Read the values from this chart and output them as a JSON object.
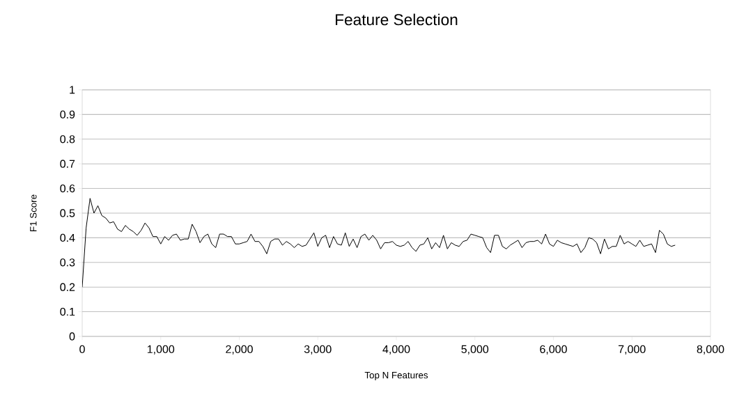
{
  "chart_data": {
    "type": "line",
    "title": "Feature Selection",
    "xlabel": "Top N Features",
    "ylabel": "F1 Score",
    "x": [
      0,
      50,
      100,
      150,
      200,
      250,
      300,
      350,
      400,
      450,
      500,
      550,
      600,
      650,
      700,
      750,
      800,
      850,
      900,
      950,
      1000,
      1050,
      1100,
      1150,
      1200,
      1250,
      1300,
      1350,
      1400,
      1450,
      1500,
      1550,
      1600,
      1650,
      1700,
      1750,
      1800,
      1850,
      1900,
      1950,
      2000,
      2050,
      2100,
      2150,
      2200,
      2250,
      2300,
      2350,
      2400,
      2450,
      2500,
      2550,
      2600,
      2650,
      2700,
      2750,
      2800,
      2850,
      2900,
      2950,
      3000,
      3050,
      3100,
      3150,
      3200,
      3250,
      3300,
      3350,
      3400,
      3450,
      3500,
      3550,
      3600,
      3650,
      3700,
      3750,
      3800,
      3850,
      3900,
      3950,
      4000,
      4050,
      4100,
      4150,
      4200,
      4250,
      4300,
      4350,
      4400,
      4450,
      4500,
      4550,
      4600,
      4650,
      4700,
      4750,
      4800,
      4850,
      4900,
      4950,
      5000,
      5050,
      5100,
      5150,
      5200,
      5250,
      5300,
      5350,
      5400,
      5450,
      5500,
      5550,
      5600,
      5650,
      5700,
      5750,
      5800,
      5850,
      5900,
      5950,
      6000,
      6050,
      6100,
      6150,
      6200,
      6250,
      6300,
      6350,
      6400,
      6450,
      6500,
      6550,
      6600,
      6650,
      6700,
      6750,
      6800,
      6850,
      6900,
      6950,
      7000,
      7050,
      7100,
      7150,
      7200,
      7250,
      7300,
      7350,
      7400,
      7450,
      7500,
      7550
    ],
    "series": [
      {
        "color": "#000000",
        "values": [
          0.2,
          0.44,
          0.56,
          0.5,
          0.53,
          0.49,
          0.48,
          0.46,
          0.465,
          0.435,
          0.425,
          0.45,
          0.435,
          0.425,
          0.41,
          0.43,
          0.46,
          0.44,
          0.405,
          0.405,
          0.375,
          0.405,
          0.39,
          0.41,
          0.415,
          0.39,
          0.395,
          0.395,
          0.455,
          0.425,
          0.38,
          0.405,
          0.415,
          0.375,
          0.36,
          0.415,
          0.415,
          0.405,
          0.405,
          0.375,
          0.375,
          0.38,
          0.385,
          0.415,
          0.385,
          0.385,
          0.365,
          0.335,
          0.385,
          0.395,
          0.395,
          0.37,
          0.385,
          0.375,
          0.36,
          0.375,
          0.365,
          0.37,
          0.395,
          0.42,
          0.365,
          0.4,
          0.41,
          0.36,
          0.405,
          0.375,
          0.37,
          0.42,
          0.365,
          0.395,
          0.36,
          0.405,
          0.415,
          0.39,
          0.41,
          0.39,
          0.355,
          0.38,
          0.38,
          0.385,
          0.37,
          0.365,
          0.37,
          0.385,
          0.36,
          0.345,
          0.37,
          0.375,
          0.4,
          0.355,
          0.38,
          0.36,
          0.41,
          0.355,
          0.38,
          0.37,
          0.365,
          0.385,
          0.39,
          0.415,
          0.41,
          0.405,
          0.4,
          0.36,
          0.34,
          0.41,
          0.41,
          0.365,
          0.355,
          0.37,
          0.38,
          0.39,
          0.36,
          0.38,
          0.385,
          0.385,
          0.39,
          0.375,
          0.415,
          0.375,
          0.365,
          0.39,
          0.38,
          0.375,
          0.37,
          0.365,
          0.375,
          0.34,
          0.36,
          0.4,
          0.395,
          0.38,
          0.335,
          0.395,
          0.355,
          0.365,
          0.365,
          0.41,
          0.375,
          0.385,
          0.375,
          0.365,
          0.39,
          0.365,
          0.37,
          0.375,
          0.34,
          0.43,
          0.415,
          0.375,
          0.365,
          0.37
        ]
      }
    ],
    "xlim": [
      0,
      8000
    ],
    "ylim": [
      0,
      1
    ],
    "xticks": [
      0,
      {
        "value": 1000,
        "label": "1,000"
      },
      {
        "value": 2000,
        "label": "2,000"
      },
      {
        "value": 3000,
        "label": "3,000"
      },
      {
        "value": 4000,
        "label": "4,000"
      },
      {
        "value": 5000,
        "label": "5,000"
      },
      {
        "value": 6000,
        "label": "6,000"
      },
      {
        "value": 7000,
        "label": "7,000"
      },
      {
        "value": 8000,
        "label": "8,000"
      }
    ],
    "yticks": [
      0,
      0.1,
      0.2,
      0.3,
      0.4,
      0.5,
      0.6,
      0.7,
      0.8,
      0.9,
      1
    ],
    "grid": "y",
    "marker": "none",
    "line_style": "solid"
  }
}
